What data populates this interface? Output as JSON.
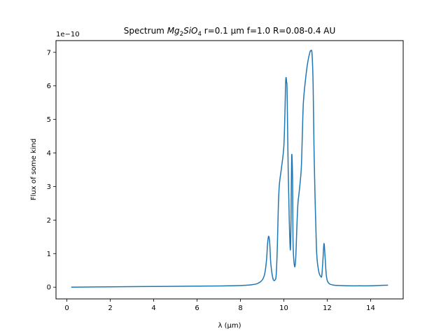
{
  "chart_data": {
    "type": "line",
    "title_parts": {
      "prefix": "Spectrum ",
      "formula": [
        "Mg",
        "2",
        "SiO",
        "4"
      ],
      "suffix": " r=0.1 μm f=1.0 R=0.08-0.4 AU"
    },
    "xlabel": "λ (μm)",
    "ylabel": "Flux of some kind",
    "y_offset_text": "1e−10",
    "xlim": [
      -0.5,
      15.5
    ],
    "ylim": [
      -0.35,
      7.35
    ],
    "xticks": [
      0,
      2,
      4,
      6,
      8,
      10,
      12,
      14
    ],
    "xtick_labels": [
      "0",
      "2",
      "4",
      "6",
      "8",
      "10",
      "12",
      "14"
    ],
    "yticks": [
      0,
      1,
      2,
      3,
      4,
      5,
      6,
      7
    ],
    "ytick_labels": [
      "0",
      "1",
      "2",
      "3",
      "4",
      "5",
      "6",
      "7"
    ],
    "grid": false,
    "series_color": "#1f77b4",
    "series": [
      {
        "x": [
          0.2,
          2,
          4,
          6,
          7.5,
          8.5,
          8.9,
          9.1,
          9.2,
          9.25,
          9.3,
          9.35,
          9.4,
          9.5,
          9.6,
          9.65,
          9.7,
          9.75,
          9.8,
          9.9,
          10.0,
          10.05,
          10.08,
          10.1,
          10.13,
          10.15,
          10.2,
          10.25,
          10.3,
          10.33,
          10.36,
          10.4,
          10.42,
          10.45,
          10.5,
          10.55,
          10.6,
          10.65,
          10.7,
          10.8,
          10.85,
          10.9,
          11.0,
          11.1,
          11.2,
          11.25,
          11.3,
          11.35,
          11.4,
          11.5,
          11.6,
          11.7,
          11.75,
          11.8,
          11.85,
          11.9,
          11.95,
          12.0,
          12.1,
          12.3,
          12.6,
          13.0,
          13.5,
          14.0,
          14.8
        ],
        "y": [
          0.0,
          0.01,
          0.02,
          0.03,
          0.04,
          0.07,
          0.15,
          0.35,
          0.8,
          1.3,
          1.52,
          1.3,
          0.7,
          0.25,
          0.22,
          0.4,
          1.2,
          2.5,
          3.1,
          3.6,
          4.2,
          5.2,
          6.05,
          6.25,
          6.1,
          5.8,
          3.5,
          2.0,
          1.1,
          2.0,
          3.9,
          3.3,
          1.5,
          0.9,
          0.6,
          0.9,
          1.8,
          2.5,
          2.8,
          3.5,
          4.5,
          5.5,
          6.2,
          6.7,
          7.0,
          7.05,
          6.95,
          6.0,
          3.8,
          1.2,
          0.5,
          0.32,
          0.35,
          0.8,
          1.3,
          0.9,
          0.4,
          0.2,
          0.1,
          0.06,
          0.05,
          0.04,
          0.04,
          0.04,
          0.06
        ]
      }
    ]
  }
}
